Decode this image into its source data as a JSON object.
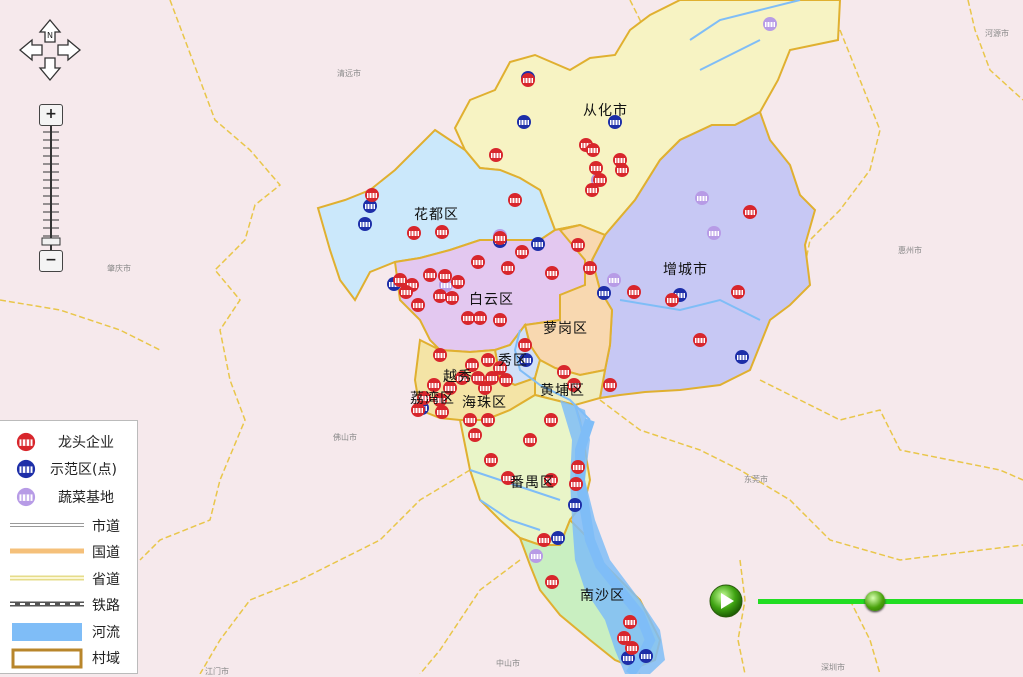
{
  "districts": [
    {
      "id": "conghua",
      "name": "从化市"
    },
    {
      "id": "huadu",
      "name": "花都区"
    },
    {
      "id": "zengcheng",
      "name": "增城市"
    },
    {
      "id": "baiyun",
      "name": "白云区"
    },
    {
      "id": "luogang",
      "name": "萝岗区"
    },
    {
      "id": "yuexiu",
      "name": "秀区"
    },
    {
      "id": "huangpu",
      "name": "黄埔区"
    },
    {
      "id": "tianhe",
      "name": "越秀"
    },
    {
      "id": "liwan",
      "name": "荔湾区"
    },
    {
      "id": "haizhu",
      "name": "海珠区"
    },
    {
      "id": "panyu",
      "name": "番禺区"
    },
    {
      "id": "nansha",
      "name": "南沙区"
    }
  ],
  "neighbor_cities": [
    {
      "name": "清远市"
    },
    {
      "name": "河源市"
    },
    {
      "name": "肇庆市"
    },
    {
      "name": "惠州市"
    },
    {
      "name": "佛山市"
    },
    {
      "name": "东莞市"
    },
    {
      "name": "中山市"
    },
    {
      "name": "深圳市"
    },
    {
      "name": "江门市"
    }
  ],
  "legend": {
    "items": [
      {
        "label": "龙头企业",
        "symbol": "enterprise-icon",
        "color": "#d8262c"
      },
      {
        "label": "示范区(点)",
        "symbol": "demo-zone-icon",
        "color": "#1d2ea8"
      },
      {
        "label": "蔬菜基地",
        "symbol": "vegetable-base-icon",
        "color": "#b79be6"
      },
      {
        "label": "市道",
        "symbol": "city-road-line",
        "color": "#9a9a9a"
      },
      {
        "label": "国道",
        "symbol": "national-road-line",
        "color": "#f5c07a"
      },
      {
        "label": "省道",
        "symbol": "provincial-road-line",
        "color": "#f3ecaa"
      },
      {
        "label": "铁路",
        "symbol": "railway-line",
        "color": "#555555"
      },
      {
        "label": "河流",
        "symbol": "river-swatch",
        "color": "#7fbdf7"
      },
      {
        "label": "村域",
        "symbol": "village-area-swatch",
        "color": "#b8862b"
      }
    ]
  },
  "controls": {
    "nav_north_label": "N",
    "zoom_in": "+",
    "zoom_out": "−",
    "timeline_position": 0.44
  },
  "colors": {
    "background": "#f6e9ec",
    "conghua": "#f7f3c3",
    "huadu": "#cbe8fb",
    "zengcheng": "#c7c8f4",
    "baiyun": "#e3c8f0",
    "luogang": "#f8d8b0",
    "panyu": "#e9f5c8",
    "nansha": "#c9efc1",
    "river": "#7fbdf7",
    "boundary": "#e0b030",
    "enterprise": "#d8262c",
    "demo": "#1d2ea8",
    "base": "#b79be6"
  }
}
